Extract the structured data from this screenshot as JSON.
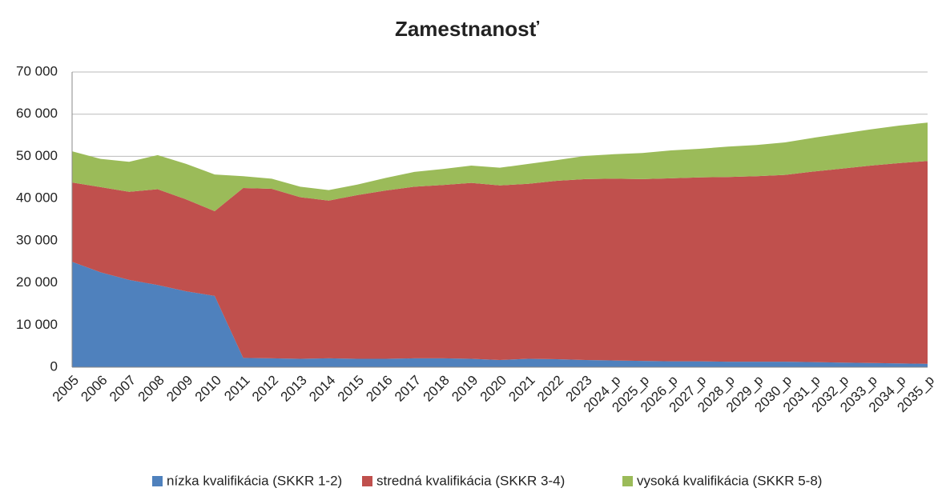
{
  "chart_data": {
    "type": "stacked_area",
    "title": "Zamestnanosť",
    "categories": [
      "2005",
      "2006",
      "2007",
      "2008",
      "2009",
      "2010",
      "2011",
      "2012",
      "2013",
      "2014",
      "2015",
      "2016",
      "2017",
      "2018",
      "2019",
      "2020",
      "2021",
      "2022",
      "2023",
      "2024_p",
      "2025_p",
      "2026_p",
      "2027_p",
      "2028_p",
      "2029_p",
      "2030_p",
      "2031_p",
      "2032_p",
      "2033_p",
      "2034_p",
      "2035_p"
    ],
    "series": [
      {
        "name": "nízka kvalifikácia (SKKR 1-2)",
        "color": "#4f81bd",
        "values": [
          25000,
          22500,
          20700,
          19500,
          18000,
          16900,
          2200,
          2100,
          2000,
          2100,
          2000,
          2000,
          2100,
          2100,
          2000,
          1700,
          2000,
          1900,
          1700,
          1600,
          1500,
          1400,
          1400,
          1300,
          1300,
          1300,
          1200,
          1100,
          1000,
          900,
          800
        ]
      },
      {
        "name": "stredná kvalifikácia (SKKR 3-4)",
        "color": "#c0504d",
        "values": [
          18800,
          20200,
          20900,
          22700,
          21800,
          20100,
          40300,
          40200,
          38300,
          37400,
          38800,
          39900,
          40700,
          41100,
          41700,
          41400,
          41500,
          42300,
          42900,
          43100,
          43100,
          43400,
          43600,
          43800,
          44000,
          44300,
          45200,
          46000,
          46800,
          47500,
          48100
        ]
      },
      {
        "name": "vysoká kvalifikácia (SKKR 5-8)",
        "color": "#9bbb59",
        "values": [
          7400,
          6700,
          7100,
          8100,
          8400,
          8700,
          2800,
          2400,
          2500,
          2500,
          2500,
          3000,
          3500,
          3800,
          4100,
          4200,
          4700,
          4900,
          5500,
          5800,
          6200,
          6600,
          6800,
          7200,
          7400,
          7700,
          8000,
          8300,
          8600,
          8900,
          9100
        ]
      }
    ],
    "ylim": [
      0,
      70000
    ],
    "yticks": [
      0,
      {
        "value": 10000,
        "label": "10 000"
      },
      {
        "value": 20000,
        "label": "20 000"
      },
      {
        "value": 30000,
        "label": "30 000"
      },
      {
        "value": 40000,
        "label": "40 000"
      },
      {
        "value": 50000,
        "label": "50 000"
      },
      {
        "value": 60000,
        "label": "60 000"
      },
      {
        "value": 70000,
        "label": "70 000"
      }
    ],
    "grid": true,
    "legend": "bottom"
  }
}
